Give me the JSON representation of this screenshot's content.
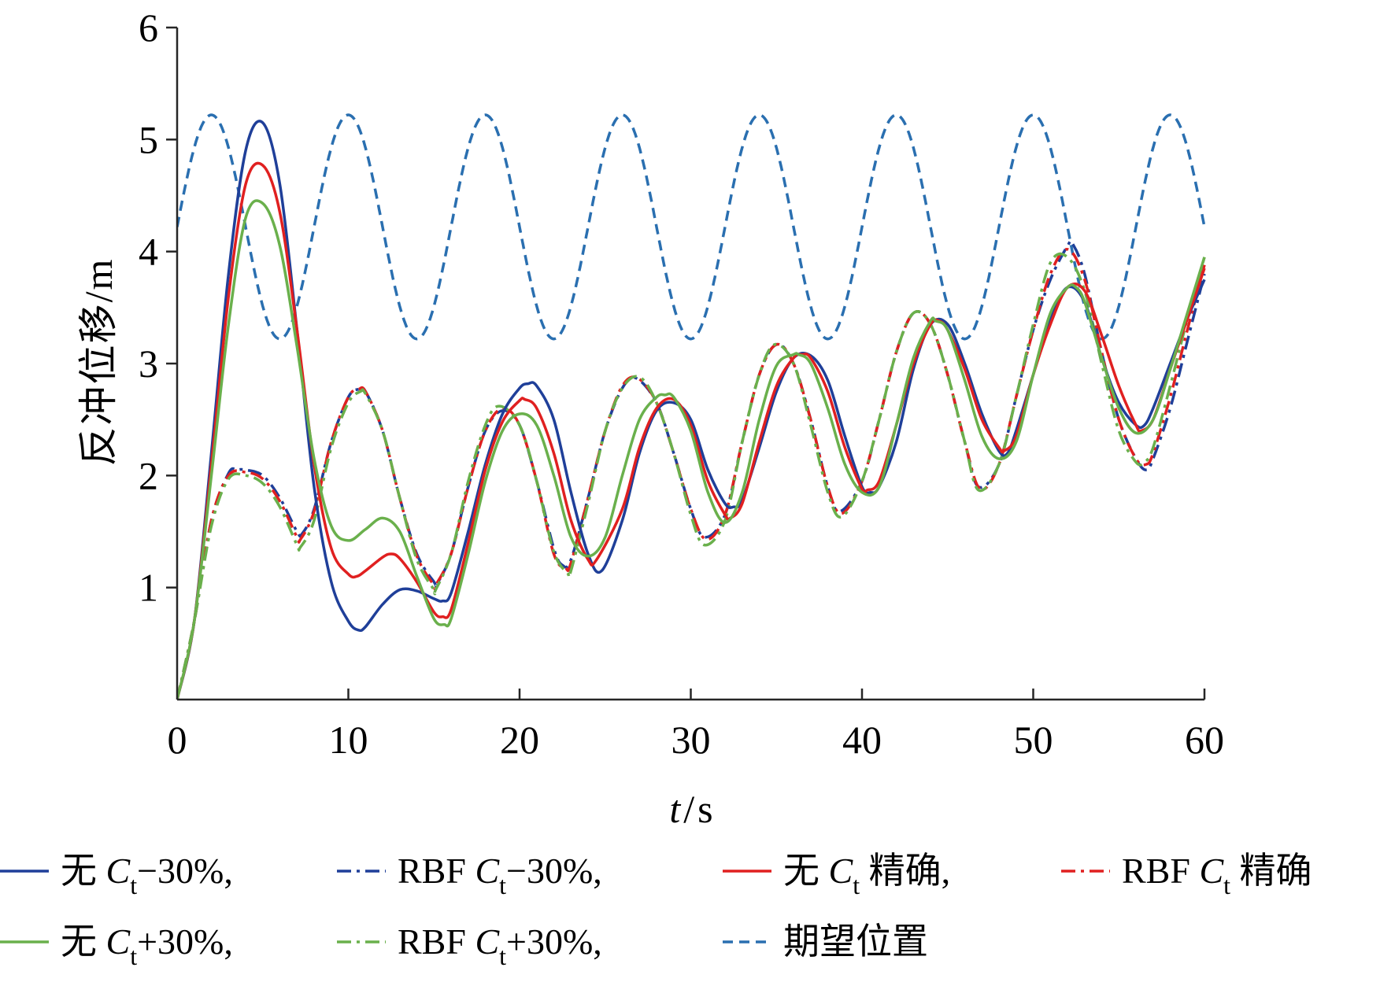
{
  "chart_data": {
    "type": "line",
    "xlabel": {
      "var": "t",
      "sep": "/",
      "unit": "s"
    },
    "ylabel": "反冲位移/m",
    "xlim": [
      0,
      60
    ],
    "ylim": [
      0,
      6
    ],
    "xticks": [
      "0",
      "10",
      "20",
      "30",
      "40",
      "50",
      "60"
    ],
    "yticks": [
      "1",
      "2",
      "3",
      "4",
      "5",
      "6"
    ],
    "grid": false,
    "legend_position": "bottom",
    "series": [
      {
        "name": "无 Ct−30%,",
        "legend": {
          "prefix": "无 ",
          "sym": "C",
          "sub": "t",
          "suffix": "−30%,"
        },
        "color": "#1f3f99",
        "dash": "solid",
        "x": [
          0,
          1,
          2,
          3,
          4,
          5,
          6,
          7,
          8,
          9,
          10,
          10.6,
          11,
          12,
          13,
          14,
          15,
          15.5,
          16,
          17,
          18,
          19,
          20,
          20.5,
          21,
          22,
          23,
          24,
          24.8,
          26,
          27,
          28,
          29,
          30,
          31,
          32,
          32.5,
          33,
          34,
          35,
          36,
          37,
          38,
          39,
          40,
          40.5,
          41,
          42,
          43,
          44,
          45,
          46,
          47,
          48,
          48.5,
          49,
          50,
          51,
          52,
          53,
          54,
          55,
          56,
          56.5,
          57,
          58,
          59,
          60
        ],
        "y": [
          0,
          0.7,
          2.2,
          3.8,
          4.9,
          5.15,
          4.6,
          3.3,
          1.9,
          1.05,
          0.7,
          0.62,
          0.65,
          0.85,
          0.98,
          0.97,
          0.9,
          0.88,
          0.95,
          1.5,
          2.1,
          2.55,
          2.78,
          2.82,
          2.8,
          2.5,
          1.85,
          1.3,
          1.15,
          1.6,
          2.2,
          2.58,
          2.65,
          2.5,
          2.05,
          1.75,
          1.72,
          1.78,
          2.25,
          2.75,
          3.05,
          3.07,
          2.85,
          2.35,
          1.9,
          1.85,
          1.9,
          2.3,
          2.95,
          3.35,
          3.35,
          3.0,
          2.55,
          2.22,
          2.2,
          2.4,
          2.9,
          3.4,
          3.68,
          3.55,
          3.05,
          2.65,
          2.45,
          2.45,
          2.6,
          3.0,
          3.4,
          3.75
        ]
      },
      {
        "name": "RBF Ct−30%,",
        "legend": {
          "prefix": "RBF ",
          "sym": "C",
          "sub": "t",
          "suffix": "−30%,"
        },
        "color": "#1f3f99",
        "dash": "dashdot",
        "x": [
          0,
          1,
          2,
          3,
          3.5,
          4,
          5,
          6,
          7,
          7.3,
          8,
          9,
          10,
          10.6,
          11,
          12,
          13,
          14,
          15,
          15.2,
          16,
          17,
          18,
          19,
          20,
          21,
          22,
          22.5,
          23,
          24,
          25,
          26,
          26.8,
          28,
          29,
          30,
          30.8,
          32,
          33,
          34,
          35,
          36,
          37,
          38,
          38.7,
          40,
          41,
          42,
          43,
          44,
          45,
          46,
          46.8,
          48,
          49,
          50,
          51,
          52,
          52.3,
          53,
          54,
          55,
          56,
          56.6,
          57,
          58,
          59,
          60
        ],
        "y": [
          0,
          0.7,
          1.6,
          2.02,
          2.05,
          2.05,
          2.0,
          1.8,
          1.5,
          1.48,
          1.7,
          2.3,
          2.7,
          2.77,
          2.75,
          2.4,
          1.8,
          1.3,
          1.05,
          1.04,
          1.3,
          1.9,
          2.4,
          2.58,
          2.45,
          1.95,
          1.35,
          1.2,
          1.25,
          1.8,
          2.4,
          2.78,
          2.87,
          2.65,
          2.2,
          1.7,
          1.45,
          1.65,
          2.3,
          2.9,
          3.17,
          3.0,
          2.5,
          1.9,
          1.68,
          1.95,
          2.5,
          3.1,
          3.45,
          3.35,
          2.9,
          2.3,
          1.9,
          2.1,
          2.7,
          3.3,
          3.75,
          4.05,
          4.07,
          3.8,
          3.1,
          2.5,
          2.15,
          2.05,
          2.15,
          2.6,
          3.2,
          3.8
        ]
      },
      {
        "name": "无 Ct 精确,",
        "legend": {
          "prefix": "无 ",
          "sym": "C",
          "sub": "t",
          "suffix": " 精确,"
        },
        "color": "#e02020",
        "dash": "solid",
        "x": [
          0,
          1,
          2,
          3,
          4,
          5,
          6,
          7,
          8,
          9,
          10,
          10.5,
          11,
          12,
          12.5,
          13,
          14,
          15,
          15.5,
          16,
          17,
          18,
          19,
          20,
          20.3,
          21,
          22,
          23,
          24,
          24.5,
          26,
          27,
          28,
          29,
          30,
          31,
          32,
          32.3,
          33,
          34,
          35,
          36,
          36.5,
          37,
          38,
          39,
          40,
          40.3,
          41,
          42,
          43,
          44,
          44.5,
          45,
          46,
          47,
          48,
          48.3,
          49,
          50,
          51,
          52,
          53,
          54,
          55,
          56,
          56.3,
          57,
          58,
          59,
          60
        ],
        "y": [
          0,
          0.7,
          2.1,
          3.6,
          4.6,
          4.77,
          4.35,
          3.3,
          2.1,
          1.35,
          1.12,
          1.1,
          1.15,
          1.27,
          1.3,
          1.26,
          1.05,
          0.78,
          0.74,
          0.8,
          1.4,
          2.05,
          2.48,
          2.67,
          2.68,
          2.6,
          2.2,
          1.6,
          1.25,
          1.25,
          1.7,
          2.25,
          2.6,
          2.68,
          2.45,
          1.95,
          1.65,
          1.62,
          1.75,
          2.3,
          2.8,
          3.05,
          3.08,
          3.05,
          2.75,
          2.25,
          1.88,
          1.87,
          1.95,
          2.45,
          3.0,
          3.35,
          3.38,
          3.3,
          2.95,
          2.5,
          2.25,
          2.22,
          2.35,
          2.9,
          3.35,
          3.68,
          3.65,
          3.25,
          2.8,
          2.45,
          2.4,
          2.5,
          2.95,
          3.4,
          3.85
        ]
      },
      {
        "name": "RBF Ct 精确",
        "legend": {
          "prefix": "RBF ",
          "sym": "C",
          "sub": "t",
          "suffix": " 精确"
        },
        "color": "#e02020",
        "dash": "dashdot",
        "x": [
          0,
          1,
          2,
          3,
          4,
          5,
          6,
          7,
          7.2,
          8,
          9,
          10,
          10.6,
          11,
          12,
          13,
          14,
          15,
          15.1,
          16,
          17,
          18,
          19,
          20,
          21,
          22,
          22.7,
          23,
          24,
          25,
          26,
          26.9,
          28,
          29,
          30,
          30.9,
          32,
          33,
          34,
          35,
          36,
          37,
          38,
          38.8,
          40,
          41,
          42,
          43,
          44,
          45,
          46,
          46.9,
          48,
          49,
          50,
          51,
          52,
          53,
          54,
          55,
          56,
          56.6,
          57,
          58,
          59,
          60
        ],
        "y": [
          0,
          0.7,
          1.6,
          2.0,
          2.03,
          1.97,
          1.77,
          1.45,
          1.43,
          1.68,
          2.3,
          2.7,
          2.77,
          2.75,
          2.4,
          1.8,
          1.28,
          1.02,
          1.02,
          1.3,
          1.9,
          2.4,
          2.6,
          2.45,
          1.95,
          1.3,
          1.17,
          1.22,
          1.8,
          2.4,
          2.8,
          2.87,
          2.65,
          2.2,
          1.7,
          1.43,
          1.65,
          2.3,
          2.9,
          3.17,
          3.0,
          2.5,
          1.9,
          1.66,
          1.95,
          2.5,
          3.1,
          3.45,
          3.35,
          2.9,
          2.3,
          1.88,
          2.1,
          2.7,
          3.3,
          3.8,
          4.02,
          3.75,
          3.1,
          2.5,
          2.15,
          2.1,
          2.2,
          2.7,
          3.3,
          3.88
        ]
      },
      {
        "name": "无 Ct+30%,",
        "legend": {
          "prefix": "无 ",
          "sym": "C",
          "sub": "t",
          "suffix": "+30%,"
        },
        "color": "#6ab04c",
        "dash": "solid",
        "x": [
          0,
          1,
          2,
          3,
          4,
          5,
          6,
          7,
          8,
          9,
          10,
          11,
          12,
          13,
          14,
          15,
          15.6,
          16,
          17,
          18,
          19,
          20,
          21,
          22,
          23,
          24,
          25,
          26,
          27,
          28,
          28.5,
          29,
          30,
          31,
          32,
          33,
          34,
          35,
          36,
          36.3,
          37,
          38,
          39,
          40,
          41,
          42,
          43,
          44,
          44.3,
          45,
          46,
          47,
          48,
          49,
          50,
          51,
          52,
          52.5,
          53,
          54,
          55,
          56,
          57,
          58,
          59,
          60
        ],
        "y": [
          0,
          0.7,
          2.0,
          3.35,
          4.3,
          4.43,
          4.05,
          3.15,
          2.15,
          1.55,
          1.42,
          1.52,
          1.62,
          1.5,
          1.1,
          0.72,
          0.67,
          0.72,
          1.3,
          1.95,
          2.4,
          2.55,
          2.45,
          2.0,
          1.45,
          1.28,
          1.45,
          2.0,
          2.5,
          2.7,
          2.72,
          2.7,
          2.4,
          1.85,
          1.58,
          1.85,
          2.5,
          2.98,
          3.08,
          3.08,
          3.0,
          2.6,
          2.1,
          1.85,
          1.9,
          2.45,
          3.05,
          3.38,
          3.38,
          3.3,
          2.85,
          2.35,
          2.15,
          2.3,
          2.9,
          3.45,
          3.68,
          3.68,
          3.55,
          3.05,
          2.6,
          2.38,
          2.5,
          2.95,
          3.45,
          3.95
        ]
      },
      {
        "name": "RBF Ct+30%,",
        "legend": {
          "prefix": "RBF ",
          "sym": "C",
          "sub": "t",
          "suffix": "+30%,"
        },
        "color": "#6ab04c",
        "dash": "dashdot",
        "x": [
          0,
          1,
          2,
          3,
          4,
          5,
          6,
          7,
          7.2,
          8,
          9,
          10,
          10.7,
          11,
          12,
          13,
          14,
          15,
          15.1,
          16,
          17,
          18,
          18.8,
          20,
          21,
          22,
          22.8,
          23,
          24,
          25,
          26,
          27,
          28,
          29,
          30,
          30.8,
          32,
          33,
          34,
          34.9,
          36,
          37,
          38,
          38.8,
          40,
          41,
          42,
          43,
          44,
          45,
          46,
          46.8,
          48,
          49,
          50,
          51,
          52,
          53,
          54,
          55,
          56,
          56.5,
          57,
          58,
          59,
          60
        ],
        "y": [
          0,
          0.7,
          1.55,
          1.97,
          2.0,
          1.93,
          1.72,
          1.38,
          1.36,
          1.6,
          2.25,
          2.65,
          2.75,
          2.73,
          2.4,
          1.8,
          1.25,
          0.98,
          0.98,
          1.3,
          1.95,
          2.45,
          2.62,
          2.45,
          1.95,
          1.32,
          1.13,
          1.15,
          1.75,
          2.4,
          2.78,
          2.88,
          2.65,
          2.2,
          1.65,
          1.38,
          1.6,
          2.3,
          2.9,
          3.17,
          3.0,
          2.45,
          1.85,
          1.63,
          1.95,
          2.5,
          3.1,
          3.45,
          3.35,
          2.9,
          2.3,
          1.87,
          2.1,
          2.7,
          3.35,
          3.9,
          3.95,
          3.65,
          3.0,
          2.4,
          2.12,
          2.12,
          2.25,
          2.8,
          3.4,
          3.95
        ]
      },
      {
        "name": "期望位置",
        "legend": {
          "prefix": "",
          "sym": "",
          "sub": "",
          "suffix": "期望位置"
        },
        "color": "#2a6fb0",
        "dash": "dashed",
        "sine": {
          "center": 4.22,
          "amplitude": 1.0,
          "period": 8,
          "phase_deg": 0
        }
      }
    ]
  }
}
